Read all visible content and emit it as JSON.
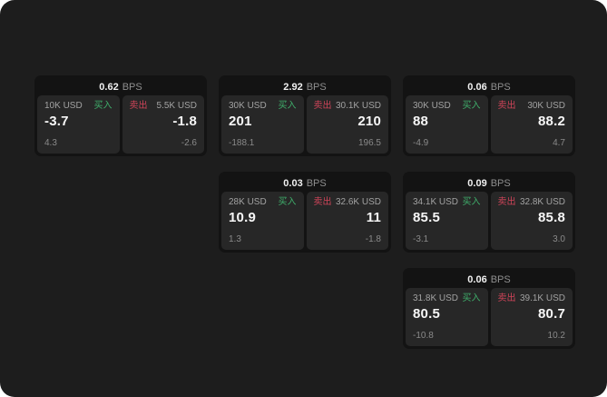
{
  "labels": {
    "bps": "BPS",
    "buy": "买入",
    "sell": "卖出"
  },
  "colors": {
    "app_bg": "#1d1d1d",
    "card_bg": "#131313",
    "panel_bg": "#272727",
    "buy": "#3fae6b",
    "sell": "#cf4459"
  },
  "cards": [
    {
      "bps": "0.62",
      "buy": {
        "amount": "10K USD",
        "value": "-3.7",
        "sub": "4.3"
      },
      "sell": {
        "amount": "5.5K USD",
        "value": "-1.8",
        "sub": "-2.6"
      }
    },
    {
      "bps": "2.92",
      "buy": {
        "amount": "30K USD",
        "value": "201",
        "sub": "-188.1"
      },
      "sell": {
        "amount": "30.1K USD",
        "value": "210",
        "sub": "196.5"
      }
    },
    {
      "bps": "0.06",
      "buy": {
        "amount": "30K USD",
        "value": "88",
        "sub": "-4.9"
      },
      "sell": {
        "amount": "30K USD",
        "value": "88.2",
        "sub": "4.7"
      }
    },
    {
      "bps": "0.03",
      "buy": {
        "amount": "28K USD",
        "value": "10.9",
        "sub": "1.3"
      },
      "sell": {
        "amount": "32.6K USD",
        "value": "11",
        "sub": "-1.8"
      }
    },
    {
      "bps": "0.09",
      "buy": {
        "amount": "34.1K USD",
        "value": "85.5",
        "sub": "-3.1"
      },
      "sell": {
        "amount": "32.8K USD",
        "value": "85.8",
        "sub": "3.0"
      }
    },
    {
      "bps": "0.06",
      "buy": {
        "amount": "31.8K USD",
        "value": "80.5",
        "sub": "-10.8"
      },
      "sell": {
        "amount": "39.1K USD",
        "value": "80.7",
        "sub": "10.2"
      }
    }
  ]
}
